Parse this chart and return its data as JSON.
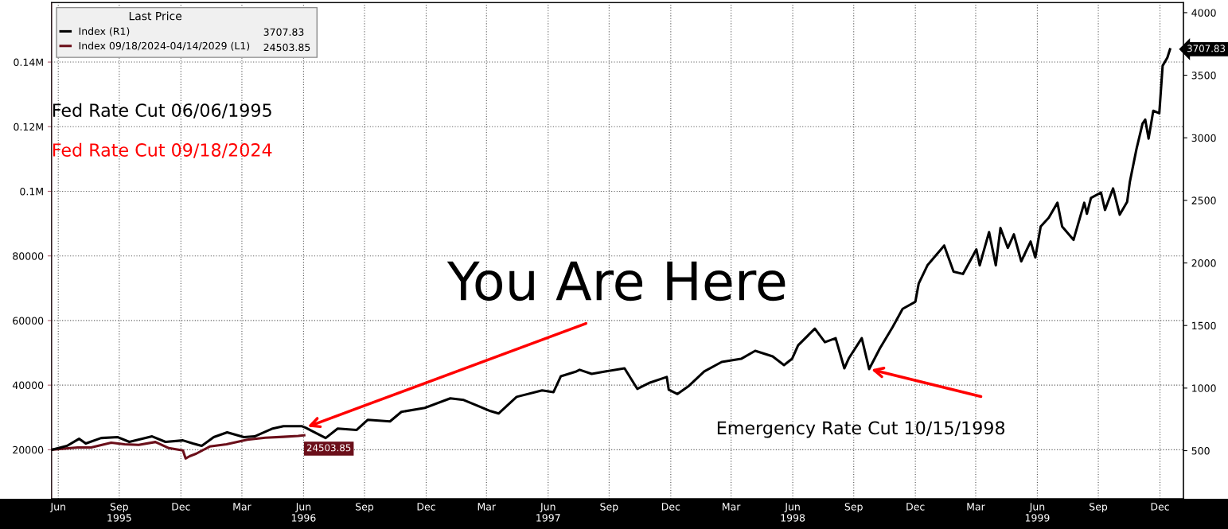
{
  "chart_data": {
    "type": "line",
    "xlim": [
      "1995-06-06",
      "2000-01-20"
    ],
    "xticks": [
      {
        "value": "1995-06-16",
        "label": "Jun"
      },
      {
        "value": "1995-09-15",
        "label": "Sep\n1995"
      },
      {
        "value": "1995-12-16",
        "label": "Dec"
      },
      {
        "value": "1996-03-16",
        "label": "Mar"
      },
      {
        "value": "1996-06-16",
        "label": "Jun\n1996"
      },
      {
        "value": "1996-09-15",
        "label": "Sep"
      },
      {
        "value": "1996-12-16",
        "label": "Dec"
      },
      {
        "value": "1997-03-16",
        "label": "Mar"
      },
      {
        "value": "1997-06-16",
        "label": "Jun\n1997"
      },
      {
        "value": "1997-09-15",
        "label": "Sep"
      },
      {
        "value": "1997-12-16",
        "label": "Dec"
      },
      {
        "value": "1998-03-16",
        "label": "Mar"
      },
      {
        "value": "1998-06-16",
        "label": "Jun\n1998"
      },
      {
        "value": "1998-09-15",
        "label": "Sep"
      },
      {
        "value": "1998-12-16",
        "label": "Dec"
      },
      {
        "value": "1999-03-16",
        "label": "Mar"
      },
      {
        "value": "1999-06-16",
        "label": "Jun\n1999"
      },
      {
        "value": "1999-09-15",
        "label": "Sep"
      },
      {
        "value": "1999-12-16",
        "label": "Dec"
      }
    ],
    "ylim": [
      4800,
      158400
    ],
    "yticks": [
      20000,
      40000,
      60000,
      80000,
      {
        "value": 100000,
        "label": "0.1M"
      },
      {
        "value": 120000,
        "label": "0.12M"
      },
      {
        "value": 140000,
        "label": "0.14M"
      }
    ],
    "y2lim": [
      115,
      4080
    ],
    "y2ticks": [
      500,
      1000,
      1500,
      2000,
      2500,
      3000,
      3500,
      4000
    ],
    "grid": true,
    "legend": "top left",
    "legend_title": "Last Price",
    "series": [
      {
        "name": "Index (R1)",
        "color": "#000000",
        "axis": "y2",
        "x": [
          "1995-06-06",
          "1995-06-29",
          "1995-07-17",
          "1995-07-27",
          "1995-08-19",
          "1995-09-13",
          "1995-09-30",
          "1995-11-03",
          "1995-11-23",
          "1995-12-19",
          "1996-01-03",
          "1996-01-16",
          "1996-02-03",
          "1996-02-23",
          "1996-03-19",
          "1996-04-04",
          "1996-05-01",
          "1996-05-17",
          "1996-06-13",
          "1996-06-19",
          "1996-07-19",
          "1996-08-06",
          "1996-09-03",
          "1996-09-20",
          "1996-10-23",
          "1996-11-09",
          "1996-12-14",
          "1997-01-21",
          "1997-02-10",
          "1997-03-22",
          "1997-04-03",
          "1997-04-30",
          "1997-06-07",
          "1997-06-24",
          "1997-07-05",
          "1997-07-28",
          "1997-08-02",
          "1997-08-20",
          "1997-09-09",
          "1997-10-08",
          "1997-10-27",
          "1997-11-15",
          "1997-12-10",
          "1997-12-13",
          "1997-12-26",
          "1998-01-11",
          "1998-02-04",
          "1998-03-02",
          "1998-03-31",
          "1998-04-21",
          "1998-05-17",
          "1998-06-03",
          "1998-06-15",
          "1998-06-24",
          "1998-07-19",
          "1998-08-03",
          "1998-08-19",
          "1998-09-01",
          "1998-09-08",
          "1998-09-27",
          "1998-10-08",
          "1998-10-24",
          "1998-11-12",
          "1998-11-27",
          "1998-12-16",
          "1998-12-21",
          "1999-01-03",
          "1999-01-28",
          "1999-02-11",
          "1999-02-25",
          "1999-03-17",
          "1999-03-22",
          "1999-04-05",
          "1999-04-15",
          "1999-04-22",
          "1999-05-03",
          "1999-05-12",
          "1999-05-23",
          "1999-06-06",
          "1999-06-13",
          "1999-06-21",
          "1999-07-03",
          "1999-07-16",
          "1999-07-23",
          "1999-08-09",
          "1999-08-25",
          "1999-08-29",
          "1999-09-04",
          "1999-09-19",
          "1999-09-25",
          "1999-10-07",
          "1999-10-17",
          "1999-10-28",
          "1999-11-01",
          "1999-11-11",
          "1999-11-20",
          "1999-11-24",
          "1999-11-29",
          "1999-12-06",
          "1999-12-15",
          "1999-12-20",
          "1999-12-27",
          "1999-12-31"
        ],
        "values": [
          506,
          538,
          595,
          557,
          601,
          608,
          570,
          614,
          570,
          582,
          557,
          538,
          608,
          646,
          608,
          614,
          677,
          696,
          696,
          684,
          601,
          677,
          665,
          747,
          734,
          810,
          842,
          918,
          905,
          816,
          797,
          930,
          981,
          968,
          1095,
          1133,
          1146,
          1114,
          1133,
          1158,
          994,
          1044,
          1089,
          987,
          953,
          1013,
          1133,
          1209,
          1234,
          1298,
          1253,
          1184,
          1234,
          1342,
          1475,
          1367,
          1399,
          1158,
          1241,
          1399,
          1152,
          1317,
          1487,
          1633,
          1690,
          1836,
          1981,
          2139,
          1931,
          1912,
          2108,
          1981,
          2247,
          1981,
          2279,
          2120,
          2228,
          2013,
          2171,
          2044,
          2291,
          2361,
          2481,
          2291,
          2184,
          2481,
          2393,
          2519,
          2563,
          2424,
          2595,
          2386,
          2488,
          2646,
          2912,
          3114,
          3146,
          2994,
          3216,
          3196,
          3576,
          3640,
          3707.83
        ],
        "value_labels": [
          null,
          null,
          null,
          null,
          null,
          null,
          null,
          null,
          null,
          null,
          null,
          null,
          null,
          null,
          null,
          null,
          null,
          null,
          null,
          null,
          null,
          null,
          null,
          null,
          null,
          null,
          null,
          null,
          null,
          null,
          null,
          null,
          null,
          null,
          null,
          null,
          null,
          null,
          null,
          null,
          null,
          null,
          null,
          null,
          null,
          null,
          null,
          null,
          null,
          null,
          null,
          null,
          null,
          null,
          null,
          null,
          null,
          null,
          null,
          null,
          null,
          null,
          null,
          null,
          null,
          null,
          null,
          null,
          null,
          null,
          null,
          null,
          null,
          null,
          null,
          null,
          null,
          null,
          null,
          null,
          null,
          null,
          null,
          null,
          null,
          null,
          null,
          null,
          null,
          null,
          null,
          null,
          null,
          null,
          null,
          null,
          null,
          null,
          null,
          null,
          null,
          null,
          "3707.83"
        ]
      },
      {
        "name": "Index 09/18/2024-04/14/2029 (L1)",
        "color": "#6b0f1a",
        "x": [
          "1995-06-06",
          "1995-07-15",
          "1995-08-04",
          "1995-09-03",
          "1995-09-23",
          "1995-10-14",
          "1995-11-08",
          "1995-11-28",
          "1995-12-19",
          "1995-12-23",
          "1995-12-29",
          "1996-01-08",
          "1996-01-28",
          "1996-02-22",
          "1996-03-24",
          "1996-04-20",
          "1996-05-17",
          "1996-06-08",
          "1996-06-17"
        ],
        "values": [
          20000,
          20700,
          20700,
          22200,
          21700,
          21500,
          22400,
          20500,
          19800,
          17300,
          18000,
          18800,
          21000,
          21700,
          23100,
          23700,
          24000,
          24300,
          24503.85
        ],
        "value_labels": [
          null,
          null,
          null,
          null,
          null,
          null,
          null,
          null,
          null,
          null,
          null,
          null,
          null,
          null,
          null,
          null,
          null,
          null,
          "24503.85"
        ]
      }
    ],
    "annotations": [
      "Fed Rate Cut 06/06/1995",
      "Fed Rate Cut 09/18/2024",
      {
        "text": "You Are Here",
        "x": "1996-06-19",
        "y": 26900
      },
      {
        "text": "Emergency Rate Cut 10/15/1998",
        "x": "1998-10-08",
        "y": 45000
      }
    ]
  }
}
